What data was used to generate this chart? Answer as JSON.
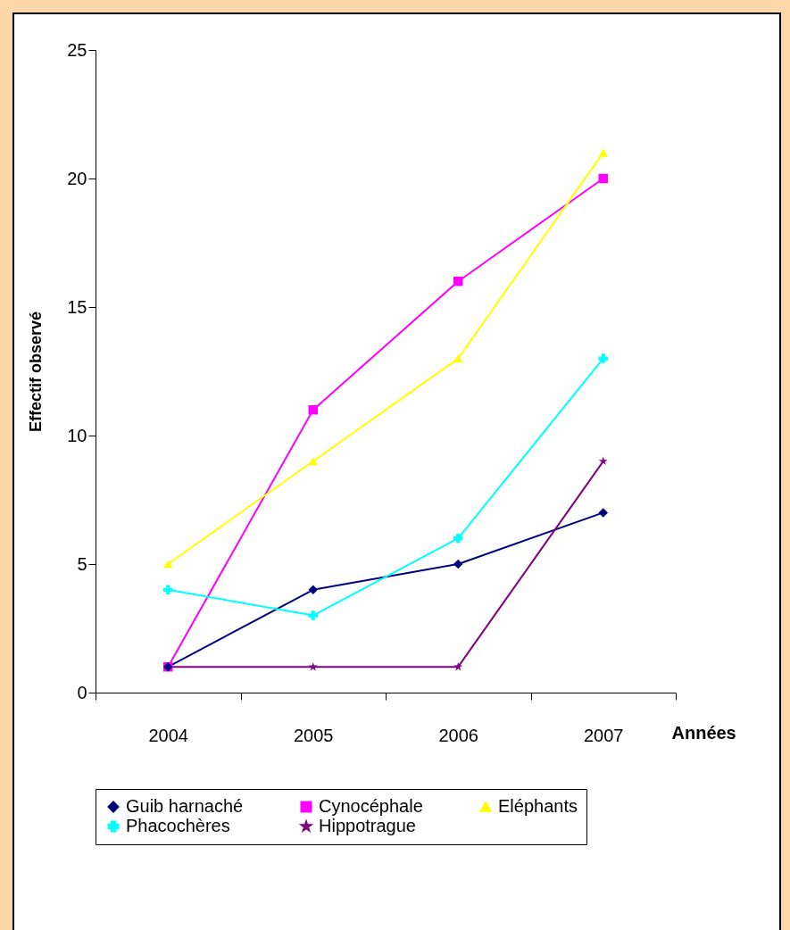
{
  "chart_data": {
    "type": "line",
    "xlabel": "Années",
    "ylabel": "Effectif observé",
    "categories": [
      "2004",
      "2005",
      "2006",
      "2007"
    ],
    "series": [
      {
        "name": "Guib harnaché",
        "color": "#000080",
        "marker": "diamond",
        "values": [
          1,
          4,
          5,
          7
        ]
      },
      {
        "name": "Cynocéphale",
        "color": "#ff00ff",
        "marker": "square",
        "values": [
          1,
          11,
          16,
          20
        ]
      },
      {
        "name": "Eléphants",
        "color": "#ffff00",
        "marker": "triangle",
        "values": [
          5,
          9,
          13,
          21
        ]
      },
      {
        "name": "Phacochères",
        "color": "#00ffff",
        "marker": "cross",
        "values": [
          4,
          3,
          6,
          13
        ]
      },
      {
        "name": "Hippotrague",
        "color": "#800080",
        "marker": "star",
        "values": [
          1,
          1,
          1,
          9
        ]
      }
    ],
    "ylim": [
      0,
      25
    ],
    "yticks": [
      0,
      5,
      10,
      15,
      20,
      25
    ],
    "grid": false,
    "legend": "bottom",
    "line_style": "solid"
  }
}
